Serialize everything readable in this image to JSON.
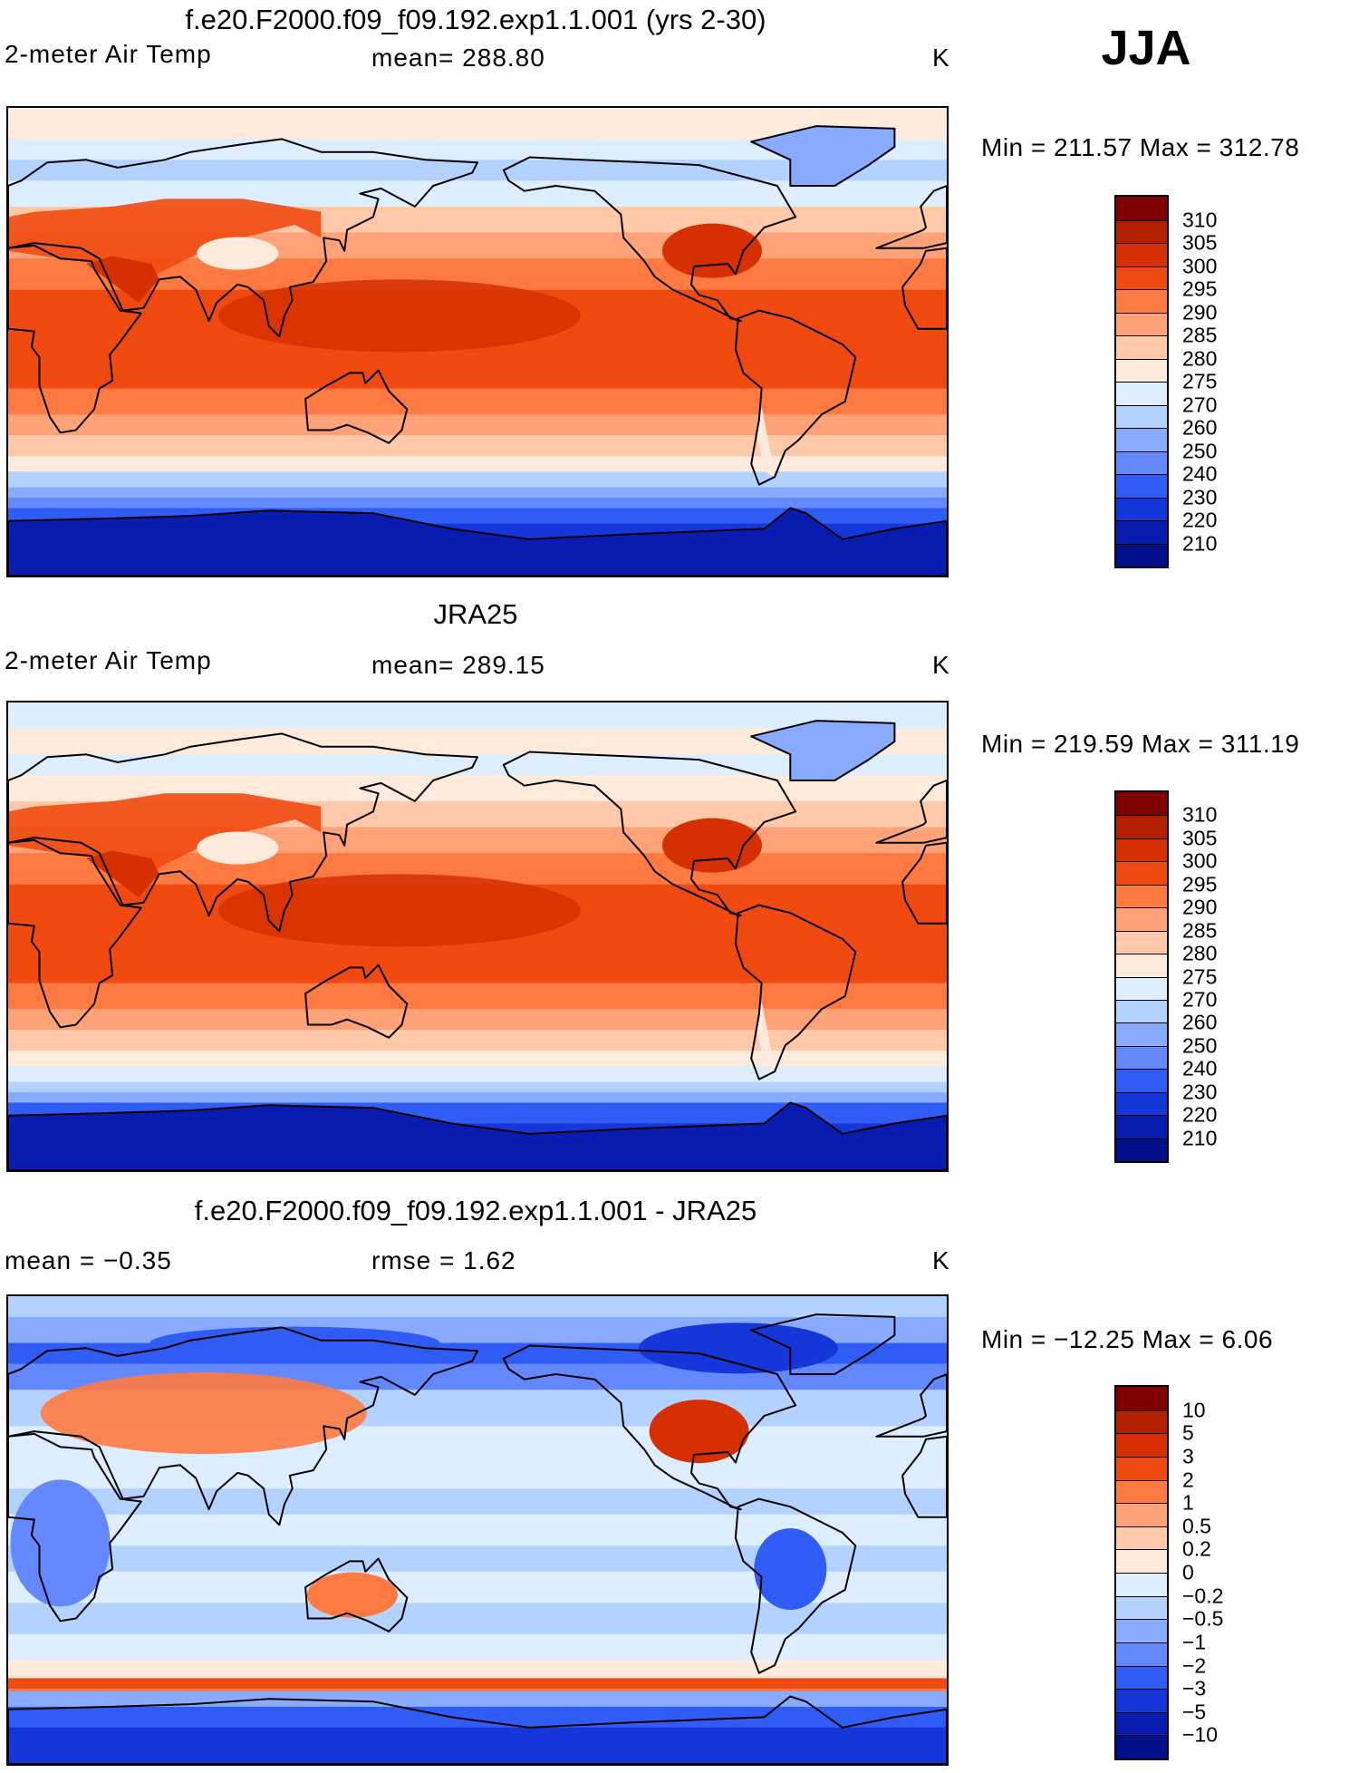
{
  "season": "JJA",
  "panels": [
    {
      "id": "model",
      "title": "f.e20.F2000.f09_f09.192.exp1.1.001 (yrs 2-30)",
      "left_text": "2-meter Air Temp",
      "center_text": "mean=  288.80",
      "units": "K",
      "minmax": "Min = 211.57 Max = 312.78",
      "palette": "temp"
    },
    {
      "id": "obs",
      "title": "JRA25",
      "left_text": "2-meter Air Temp",
      "center_text": "mean=  289.15",
      "units": "K",
      "minmax": "Min = 219.59 Max = 311.19",
      "palette": "temp"
    },
    {
      "id": "diff",
      "title": "f.e20.F2000.f09_f09.192.exp1.1.001 - JRA25",
      "left_text": "mean =   −0.35",
      "center_text": "rmse =     1.62",
      "units": "K",
      "minmax": "Min = −12.25 Max =     6.06",
      "palette": "diff"
    }
  ],
  "colorbars": {
    "temp": {
      "labels": [
        "310",
        "305",
        "300",
        "295",
        "290",
        "285",
        "280",
        "275",
        "270",
        "260",
        "250",
        "240",
        "230",
        "220",
        "210"
      ],
      "colors": [
        "#800000",
        "#b22000",
        "#d63000",
        "#f04a10",
        "#ff7a40",
        "#ffa278",
        "#ffc8a8",
        "#ffeadc",
        "#dceeff",
        "#b4d2ff",
        "#88aaff",
        "#6488ff",
        "#2f5cf5",
        "#1536d8",
        "#0a1cb0",
        "#00108a"
      ]
    },
    "diff": {
      "labels": [
        "10",
        "5",
        "3",
        "2",
        "1",
        "0.5",
        "0.2",
        "0",
        "−0.2",
        "−0.5",
        "−1",
        "−2",
        "−3",
        "−5",
        "−10"
      ],
      "colors": [
        "#800000",
        "#b22000",
        "#d63000",
        "#f04a10",
        "#ff7a40",
        "#ffa278",
        "#ffc8a8",
        "#ffeadc",
        "#dceeff",
        "#b4d2ff",
        "#88aaff",
        "#6488ff",
        "#2f5cf5",
        "#1536d8",
        "#0a1cb0",
        "#00108a"
      ]
    }
  }
}
